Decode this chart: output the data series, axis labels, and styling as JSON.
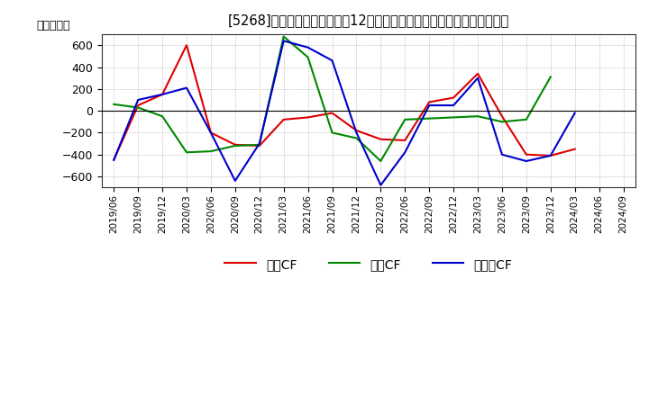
{
  "title": "[5268]　キャッシュフローの12か月移動合計の対前年同期増減額の推移",
  "ylabel": "（百万円）",
  "background_color": "#ffffff",
  "grid_color": "#aaaaaa",
  "x_labels": [
    "2019/06",
    "2019/09",
    "2019/12",
    "2020/03",
    "2020/06",
    "2020/09",
    "2020/12",
    "2021/03",
    "2021/06",
    "2021/09",
    "2021/12",
    "2022/03",
    "2022/06",
    "2022/09",
    "2022/12",
    "2023/03",
    "2023/06",
    "2023/09",
    "2023/12",
    "2024/03",
    "2024/06",
    "2024/09"
  ],
  "operating_cf": [
    -450,
    50,
    150,
    600,
    -200,
    -310,
    -320,
    -80,
    -60,
    -20,
    -180,
    -260,
    -270,
    80,
    120,
    340,
    -50,
    -400,
    -410,
    -350,
    null,
    null
  ],
  "investing_cf": [
    60,
    30,
    -50,
    -380,
    -370,
    -320,
    -310,
    680,
    490,
    -200,
    -250,
    -460,
    -80,
    -70,
    -60,
    -50,
    -100,
    -80,
    310,
    null,
    null,
    null
  ],
  "free_cf": [
    -450,
    100,
    150,
    210,
    -200,
    -640,
    -300,
    640,
    580,
    460,
    -200,
    -680,
    -380,
    50,
    50,
    300,
    -400,
    -460,
    -410,
    -20,
    null,
    null
  ],
  "colors": {
    "operating": "#dd0000",
    "investing": "#008800",
    "free": "#0000cc"
  },
  "ylim": [
    -700,
    700
  ],
  "yticks": [
    -600,
    -400,
    -200,
    0,
    200,
    400,
    600
  ],
  "legend_labels": [
    "営業CF",
    "投資CF",
    "フリーCF"
  ]
}
